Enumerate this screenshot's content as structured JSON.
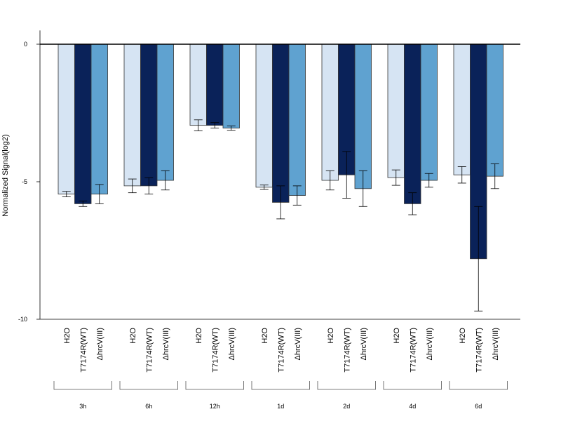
{
  "chart_data": {
    "type": "bar",
    "ylabel": "Normalized Signal(log2)",
    "ylim": [
      -10,
      0.5
    ],
    "yticks": [
      "0",
      "-5",
      "-10"
    ],
    "baseline": 0,
    "groups": [
      "3h",
      "6h",
      "12h",
      "1d",
      "2d",
      "4d",
      "6d"
    ],
    "series": [
      {
        "name": "H2O",
        "color": "#d6e4f3",
        "values": [
          -5.45,
          -5.15,
          -2.95,
          -5.2,
          -4.95,
          -4.85,
          -4.75
        ],
        "errors": [
          0.1,
          0.25,
          0.2,
          0.08,
          0.35,
          0.28,
          0.3
        ]
      },
      {
        "name": "T7174R(WT)",
        "color": "#0a2259",
        "values": [
          -5.8,
          -5.15,
          -2.95,
          -5.75,
          -4.75,
          -5.8,
          -7.8
        ],
        "errors": [
          0.1,
          0.3,
          0.1,
          0.6,
          0.85,
          0.4,
          1.9
        ]
      },
      {
        "name": "ΔhrcV(III)",
        "color": "#5fa2d0",
        "values": [
          -5.45,
          -4.95,
          -3.05,
          -5.5,
          -5.25,
          -4.95,
          -4.8
        ],
        "errors": [
          0.35,
          0.35,
          0.08,
          0.35,
          0.65,
          0.25,
          0.45
        ]
      }
    ],
    "grid": false,
    "legend": "none"
  }
}
